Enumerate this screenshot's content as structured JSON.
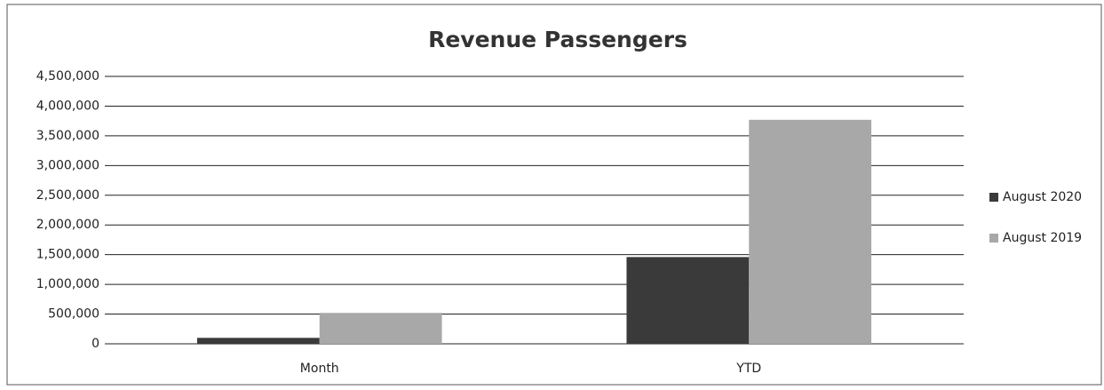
{
  "chart_data": {
    "type": "bar",
    "title": "Revenue Passengers",
    "categories": [
      "Month",
      "YTD"
    ],
    "series": [
      {
        "name": "August 2020",
        "color": "#3a3a3a",
        "values": [
          100000,
          1460000
        ]
      },
      {
        "name": "August 2019",
        "color": "#a8a8a8",
        "values": [
          520000,
          3770000
        ]
      }
    ],
    "ylim": [
      0,
      4500000
    ],
    "yticks": [
      0,
      {
        "value": 500000,
        "label": "500,000"
      },
      {
        "value": 1000000,
        "label": "1,000,000"
      },
      {
        "value": 1500000,
        "label": "1,500,000"
      },
      {
        "value": 2000000,
        "label": "2,000,000"
      },
      {
        "value": 2500000,
        "label": "2,500,000"
      },
      {
        "value": 3000000,
        "label": "3,000,000"
      },
      {
        "value": 3500000,
        "label": "3,500,000"
      },
      {
        "value": 4000000,
        "label": "4,000,000"
      },
      {
        "value": 4500000,
        "label": "4,500,000"
      }
    ],
    "grid": true,
    "legend": "right"
  }
}
